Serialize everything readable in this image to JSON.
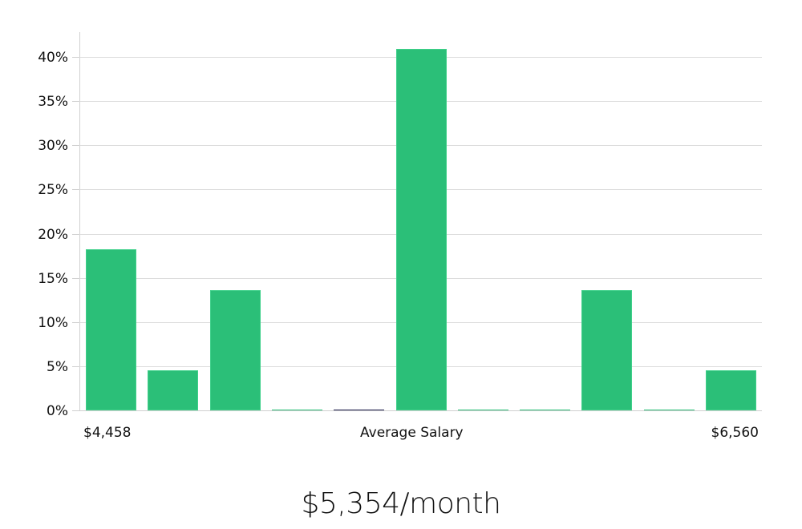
{
  "chart_data": {
    "type": "bar",
    "title": "",
    "xlabel": "Average Salary",
    "ylabel": "",
    "ylim": [
      0,
      42.5
    ],
    "yticks": [
      "0%",
      "5%",
      "10%",
      "15%",
      "20%",
      "25%",
      "30%",
      "35%",
      "40%"
    ],
    "ytick_values": [
      0,
      5,
      10,
      15,
      20,
      25,
      30,
      35,
      40
    ],
    "grid": true,
    "x_range_labels": {
      "min": "$4,458",
      "max": "$6,560"
    },
    "categories": [
      "bin1",
      "bin2",
      "bin3",
      "bin4",
      "bin5",
      "bin6",
      "bin7",
      "bin8",
      "bin9",
      "bin10",
      "bin11"
    ],
    "values": [
      18.2,
      4.5,
      13.6,
      0,
      0,
      40.9,
      0,
      0,
      13.6,
      0,
      4.5
    ],
    "bar_colors": [
      "#2bbf78",
      "#2bbf78",
      "#2bbf78",
      "#2bbf78",
      "#1a1a4a",
      "#2bbf78",
      "#2bbf78",
      "#2bbf78",
      "#2bbf78",
      "#2bbf78",
      "#2bbf78"
    ],
    "unit": "%"
  },
  "axis": {
    "min_label": "$4,458",
    "center_label": "Average Salary",
    "max_label": "$6,560"
  },
  "summary": {
    "headline": "$5,354/month"
  },
  "colors": {
    "bar": "#2bbf78",
    "highlight_bar": "#1a1a4a",
    "grid": "#dcdcdc"
  }
}
